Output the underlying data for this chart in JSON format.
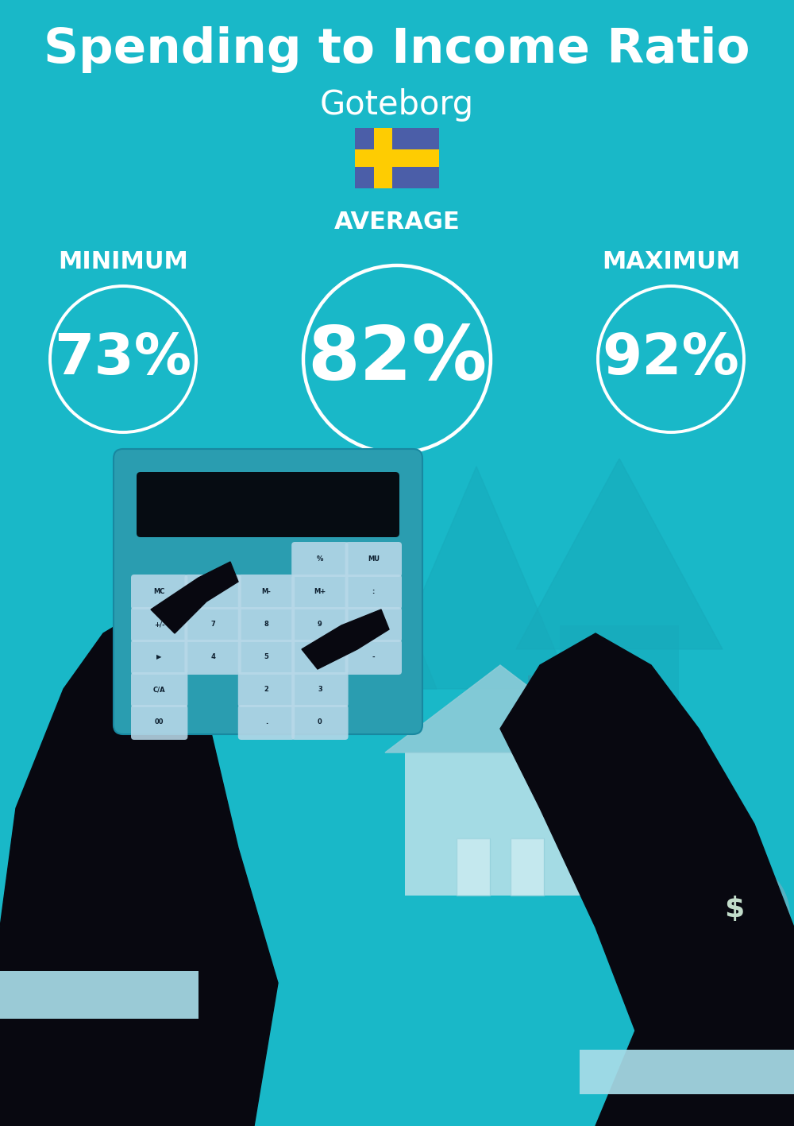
{
  "title": "Spending to Income Ratio",
  "subtitle": "Goteborg",
  "bg_color": "#19b8c8",
  "text_color": "#ffffff",
  "min_label": "MINIMUM",
  "avg_label": "AVERAGE",
  "max_label": "MAXIMUM",
  "min_value": "73%",
  "avg_value": "82%",
  "max_value": "92%",
  "circle_edge_color": "#ffffff",
  "title_fontsize": 44,
  "subtitle_fontsize": 30,
  "label_fontsize": 22,
  "value_fontsize_small": 52,
  "value_fontsize_large": 68,
  "circle_lw": 2.8,
  "avg_circle_lw": 3.2,
  "flag_blue": "#4B5EA8",
  "flag_yellow": "#FECC02",
  "dark": "#080810",
  "calc_blue": "#2a9db0",
  "cuff_color": "#a8dce8",
  "arrow_color": "#17aabb",
  "house_color": "#90ccd8",
  "house_light": "#b8e0e8",
  "money_bag_color": "#5ab2c2",
  "money_bag_dark": "#3a8898",
  "bill_color": "#80c8d8"
}
